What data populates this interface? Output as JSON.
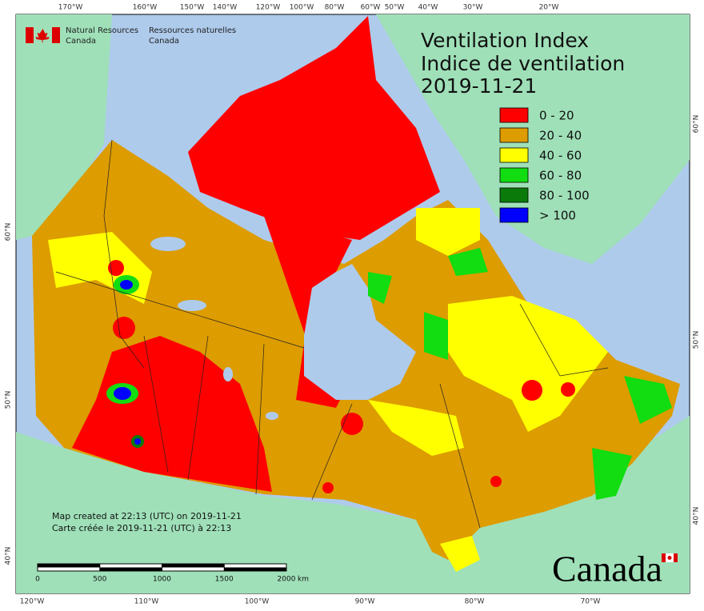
{
  "agency": {
    "en_line1": "Natural Resources",
    "en_line2": "Canada",
    "fr_line1": "Ressources naturelles",
    "fr_line2": "Canada"
  },
  "title": [
    "Ventilation Index",
    "Indice de ventilation",
    "2019-11-21"
  ],
  "legend": [
    {
      "label": "0 - 20",
      "color": "#ff0000"
    },
    {
      "label": "20 - 40",
      "color": "#dd9c00"
    },
    {
      "label": "40 - 60",
      "color": "#ffff00"
    },
    {
      "label": "60 - 80",
      "color": "#11dd11"
    },
    {
      "label": "80 - 100",
      "color": "#0a7a0a"
    },
    {
      "label": "> 100",
      "color": "#0000ff"
    }
  ],
  "credits": [
    "Map created at 22:13 (UTC) on 2019-11-21",
    "Carte créée le 2019-11-21 (UTC) à 22:13"
  ],
  "scale_bar": {
    "ticks": [
      0,
      500,
      1000,
      1500,
      2000
    ],
    "unit": "km"
  },
  "graticule": {
    "top": [
      "170°W",
      "160°W",
      "150°W",
      "140°W",
      "120°W",
      "100°W",
      "80°W",
      "60°W",
      "50°W",
      "40°W",
      "30°W",
      "20°W"
    ],
    "bottom": [
      "120°W",
      "110°W",
      "100°W",
      "90°W",
      "80°W",
      "70°W"
    ],
    "left": [
      "60°N",
      "50°N",
      "40°N"
    ],
    "right": [
      "60°N",
      "50°N",
      "40°N"
    ]
  },
  "wordmark": "Canada"
}
